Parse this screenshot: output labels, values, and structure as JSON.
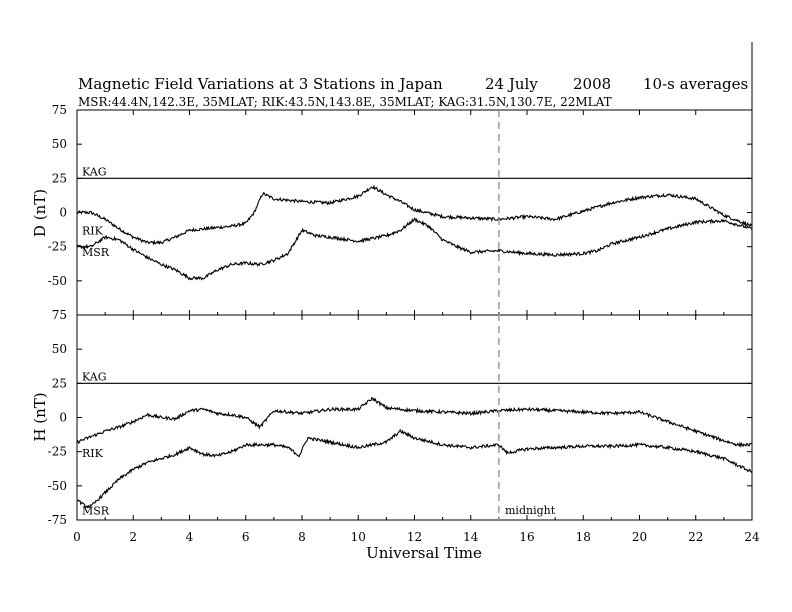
{
  "chart_data": {
    "type": "line",
    "title": "Magnetic Field Variations at 3 Stations in Japan",
    "date_text": "24 July",
    "year_text": "2008",
    "averaging_text": "10-s averages",
    "subtitle": "MSR:44.4N,142.3E, 35MLAT;  RIK:43.5N,143.8E, 35MLAT;  KAG:31.5N,130.7E, 22MLAT",
    "xlabel": "Universal Time",
    "xlim": [
      0,
      24
    ],
    "x_ticks": [
      "0",
      "2",
      "4",
      "6",
      "8",
      "10",
      "12",
      "14",
      "16",
      "18",
      "20",
      "22",
      "24"
    ],
    "midnight_label": "midnight",
    "midnight_ut": 15,
    "panels": [
      {
        "ylabel": "D (nT)",
        "ylim": [
          -75,
          75
        ],
        "y_ticks": [
          "75",
          "50",
          "25",
          "0",
          "-25",
          "-50",
          "-75"
        ],
        "series": [
          {
            "name": "KAG",
            "x": [
              0,
              24
            ],
            "y": [
              25,
              25
            ]
          },
          {
            "name": "RIK",
            "x": [
              0,
              0.5,
              1,
              1.5,
              2,
              2.5,
              3,
              3.5,
              4,
              4.5,
              5,
              5.5,
              6,
              6.3,
              6.6,
              7,
              8,
              9,
              10,
              10.5,
              11,
              11.5,
              12,
              13,
              14,
              15,
              16,
              17,
              18,
              19,
              20,
              21,
              22,
              23,
              24
            ],
            "y": [
              0,
              0,
              -5,
              -12,
              -18,
              -22,
              -22,
              -18,
              -13,
              -12,
              -11,
              -10,
              -8,
              0,
              14,
              10,
              8,
              7,
              12,
              19,
              13,
              8,
              2,
              -3,
              -4,
              -5,
              -3,
              -5,
              1,
              7,
              11,
              13,
              10,
              -2,
              -10
            ]
          },
          {
            "name": "MSR",
            "x": [
              0,
              0.5,
              1,
              1.5,
              2,
              2.5,
              3,
              3.5,
              4,
              4.5,
              5,
              5.5,
              6,
              6.5,
              7,
              7.5,
              8,
              8.5,
              9,
              10,
              11,
              11.5,
              12,
              12.5,
              13,
              13.5,
              14,
              15,
              16,
              17,
              18,
              18.5,
              19,
              20,
              21,
              22,
              23,
              24
            ],
            "y": [
              -25,
              -25,
              -18,
              -20,
              -27,
              -33,
              -38,
              -42,
              -48,
              -48,
              -42,
              -38,
              -37,
              -38,
              -35,
              -30,
              -13,
              -17,
              -18,
              -21,
              -17,
              -13,
              -5,
              -10,
              -20,
              -25,
              -29,
              -28,
              -30,
              -31,
              -30,
              -28,
              -23,
              -18,
              -12,
              -7,
              -6,
              -12
            ]
          }
        ]
      },
      {
        "ylabel": "H (nT)",
        "ylim": [
          -75,
          75
        ],
        "y_ticks": [
          "75",
          "50",
          "25",
          "0",
          "-25",
          "-50",
          "-75"
        ],
        "series": [
          {
            "name": "KAG",
            "x": [
              0,
              24
            ],
            "y": [
              25,
              25
            ]
          },
          {
            "name": "RIK",
            "x": [
              0,
              0.5,
              1,
              1.5,
              2,
              2.5,
              3,
              3.5,
              4,
              4.5,
              5,
              5.5,
              6,
              6.5,
              7,
              8,
              9,
              10,
              10.5,
              11,
              12,
              13,
              14,
              15,
              16,
              17,
              18,
              19,
              20,
              21,
              22,
              23,
              23.5,
              24
            ],
            "y": [
              -18,
              -14,
              -10,
              -7,
              -3,
              2,
              0,
              -1,
              5,
              6,
              3,
              2,
              0,
              -7,
              5,
              3,
              6,
              6,
              14,
              7,
              5,
              4,
              3,
              5,
              6,
              5,
              4,
              3,
              4,
              -3,
              -10,
              -17,
              -20,
              -20
            ]
          },
          {
            "name": "MSR",
            "x": [
              0,
              0.3,
              0.5,
              1,
              1.5,
              2,
              2.5,
              3,
              3.5,
              4,
              4.5,
              5,
              5.5,
              6,
              6.5,
              7,
              7.5,
              7.9,
              8.2,
              9,
              10,
              11,
              11.5,
              12,
              13,
              14,
              15,
              15.3,
              16,
              17,
              18,
              19,
              20,
              21,
              22,
              23,
              24
            ],
            "y": [
              -60,
              -65,
              -65,
              -55,
              -45,
              -38,
              -33,
              -30,
              -27,
              -22,
              -27,
              -28,
              -25,
              -20,
              -20,
              -20,
              -22,
              -28,
              -15,
              -18,
              -22,
              -18,
              -10,
              -15,
              -20,
              -22,
              -20,
              -26,
              -23,
              -22,
              -21,
              -21,
              -20,
              -22,
              -25,
              -30,
              -40
            ]
          }
        ]
      }
    ]
  }
}
